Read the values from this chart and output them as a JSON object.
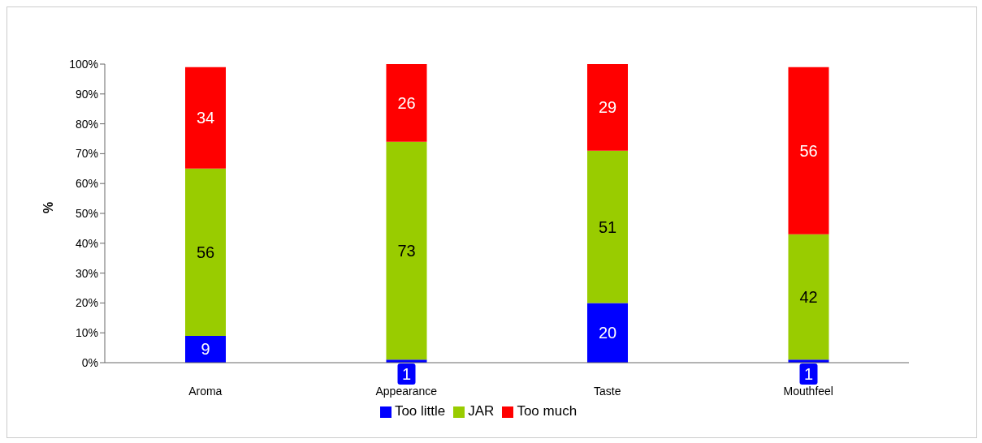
{
  "chart_data": {
    "type": "bar",
    "stacked": true,
    "ylabel": "%",
    "categories": [
      "Aroma",
      "Appearance",
      "Taste",
      "Mouthfeel"
    ],
    "series": [
      {
        "name": "Too little",
        "color": "#0000ff",
        "values": [
          9,
          1,
          20,
          1
        ]
      },
      {
        "name": "JAR",
        "color": "#99cc00",
        "values": [
          56,
          73,
          51,
          42
        ]
      },
      {
        "name": "Too much",
        "color": "#ff0000",
        "values": [
          34,
          26,
          29,
          56
        ]
      }
    ],
    "ylim": [
      0,
      100
    ],
    "yticks": [
      {
        "value": 0,
        "label": "0%"
      },
      {
        "value": 10,
        "label": "10%"
      },
      {
        "value": 20,
        "label": "20%"
      },
      {
        "value": 30,
        "label": "30%"
      },
      {
        "value": 40,
        "label": "40%"
      },
      {
        "value": 50,
        "label": "50%"
      },
      {
        "value": 60,
        "label": "60%"
      },
      {
        "value": 70,
        "label": "70%"
      },
      {
        "value": 80,
        "label": "80%"
      },
      {
        "value": 90,
        "label": "90%"
      },
      {
        "value": 100,
        "label": "100%"
      }
    ],
    "data_labels": true,
    "legend": "bottom",
    "grid": false
  }
}
